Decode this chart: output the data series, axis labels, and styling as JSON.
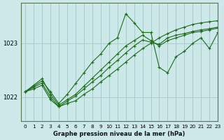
{
  "title": "Graphe pression niveau de la mer (hPa)",
  "bg_color": "#cce8e8",
  "grid_color": "#aacccc",
  "line_color": "#1a6b1a",
  "xlim": [
    -0.5,
    23
  ],
  "ylim": [
    1021.55,
    1023.75
  ],
  "yticks": [
    1022,
    1023
  ],
  "xticks": [
    0,
    1,
    2,
    3,
    4,
    5,
    6,
    7,
    8,
    9,
    10,
    11,
    12,
    13,
    14,
    15,
    16,
    17,
    18,
    19,
    20,
    21,
    22,
    23
  ],
  "series": [
    [
      1022.1,
      1022.15,
      1022.22,
      1021.95,
      1021.82,
      1021.88,
      1021.93,
      1022.05,
      1022.15,
      1022.28,
      1022.4,
      1022.52,
      1022.65,
      1022.78,
      1022.9,
      1023.0,
      1023.1,
      1023.18,
      1023.25,
      1023.3,
      1023.35,
      1023.38,
      1023.4,
      1023.42
    ],
    [
      1022.1,
      1022.2,
      1022.3,
      1022.1,
      1021.88,
      1022.05,
      1022.25,
      1022.45,
      1022.65,
      1022.8,
      1023.0,
      1023.1,
      1023.55,
      1023.38,
      1023.2,
      1023.2,
      1022.55,
      1022.45,
      1022.75,
      1022.85,
      1023.0,
      1023.1,
      1022.9,
      1023.2
    ],
    [
      1022.1,
      1022.22,
      1022.34,
      1022.05,
      1021.85,
      1021.95,
      1022.05,
      1022.2,
      1022.35,
      1022.5,
      1022.65,
      1022.8,
      1022.95,
      1023.05,
      1023.15,
      1023.05,
      1022.95,
      1023.05,
      1023.1,
      1023.15,
      1023.2,
      1023.22,
      1023.25,
      1023.28
    ],
    [
      1022.1,
      1022.18,
      1022.26,
      1022.0,
      1021.82,
      1021.92,
      1022.02,
      1022.15,
      1022.28,
      1022.4,
      1022.55,
      1022.68,
      1022.82,
      1022.95,
      1023.06,
      1023.02,
      1022.98,
      1023.1,
      1023.15,
      1023.18,
      1023.22,
      1023.25,
      1023.27,
      1023.3
    ]
  ]
}
